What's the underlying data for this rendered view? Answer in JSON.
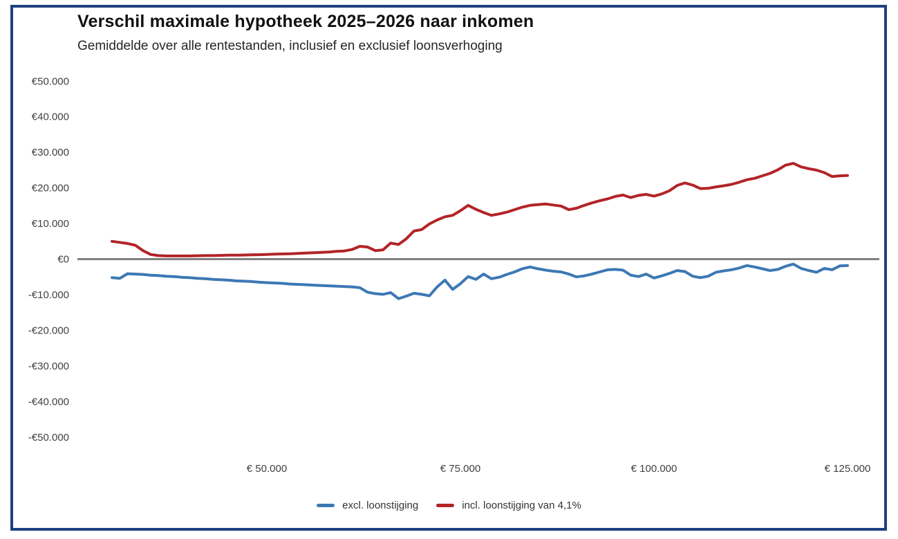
{
  "header": {
    "title": "Verschil maximale hypotheek 2025–2026 naar inkomen",
    "subtitle": "Gemiddelde over alle rentestanden, inclusief en exclusief loonsverhoging"
  },
  "colors": {
    "frame": "#1f4080",
    "zero_line": "#7f7f7f",
    "axis_text": "#404040",
    "excl_line": "#3c78b4",
    "incl_line": "#b22428"
  },
  "chart_data": {
    "type": "line",
    "title": "Verschil maximale hypotheek 2025–2026 naar inkomen",
    "subtitle": "Gemiddelde over alle rentestanden, inclusief en exclusief loonsverhoging",
    "grid": false,
    "legend_position": "bottom",
    "ylim": [
      -50000,
      50000
    ],
    "x_start": 30000,
    "x_step": 1000,
    "x_end": 125000,
    "y_ticks": [
      {
        "label": "€50.000",
        "value": 50000
      },
      {
        "label": "€40.000",
        "value": 40000
      },
      {
        "label": "€30.000",
        "value": 30000
      },
      {
        "label": "€20.000",
        "value": 20000
      },
      {
        "label": "€10.000",
        "value": 10000
      },
      {
        "label": "€0",
        "value": 0
      },
      {
        "label": "-€10.000",
        "value": -10000
      },
      {
        "label": "-€20.000",
        "value": -20000
      },
      {
        "label": "-€30.000",
        "value": -30000
      },
      {
        "label": "-€40.000",
        "value": -40000
      },
      {
        "label": "-€50.000",
        "value": -50000
      }
    ],
    "x_ticks": [
      {
        "label": "€ 50.000",
        "value": 50000
      },
      {
        "label": "€ 75.000",
        "value": 75000
      },
      {
        "label": "€ 100.000",
        "value": 100000
      },
      {
        "label": "€ 125.000",
        "value": 125000
      }
    ],
    "series": [
      {
        "id": "excl",
        "name": "excl. loonstijging",
        "color": "#3c78b4",
        "values": [
          -5200,
          -5400,
          -4100,
          -4200,
          -4300,
          -4500,
          -4600,
          -4800,
          -4900,
          -5100,
          -5200,
          -5400,
          -5500,
          -5700,
          -5800,
          -5900,
          -6100,
          -6200,
          -6300,
          -6500,
          -6600,
          -6700,
          -6800,
          -7000,
          -7100,
          -7200,
          -7300,
          -7400,
          -7500,
          -7600,
          -7700,
          -7800,
          -8000,
          -9300,
          -9700,
          -9900,
          -9400,
          -11100,
          -10400,
          -9600,
          -9900,
          -10300,
          -7800,
          -5900,
          -8500,
          -6900,
          -4900,
          -5700,
          -4200,
          -5500,
          -5100,
          -4300,
          -3600,
          -2700,
          -2200,
          -2700,
          -3100,
          -3400,
          -3600,
          -4200,
          -5000,
          -4700,
          -4200,
          -3600,
          -3000,
          -2900,
          -3100,
          -4500,
          -4900,
          -4200,
          -5300,
          -4700,
          -4000,
          -3200,
          -3500,
          -4800,
          -5200,
          -4800,
          -3700,
          -3300,
          -3000,
          -2500,
          -1800,
          -2200,
          -2700,
          -3200,
          -2900,
          -2000,
          -1400,
          -2600,
          -3200,
          -3700,
          -2600,
          -3000,
          -1900,
          -1800
        ]
      },
      {
        "id": "incl",
        "name": "incl. loonstijging van 4,1%",
        "color": "#b22428",
        "values": [
          5000,
          4700,
          4400,
          3900,
          2400,
          1300,
          1000,
          900,
          900,
          900,
          900,
          950,
          1000,
          1000,
          1050,
          1100,
          1100,
          1150,
          1200,
          1250,
          1300,
          1400,
          1450,
          1500,
          1600,
          1700,
          1800,
          1900,
          2000,
          2200,
          2300,
          2700,
          3600,
          3400,
          2400,
          2600,
          4500,
          4100,
          5700,
          7900,
          8300,
          9900,
          11000,
          11900,
          12300,
          13600,
          15100,
          14000,
          13100,
          12300,
          12700,
          13200,
          13900,
          14600,
          15100,
          15300,
          15500,
          15200,
          14900,
          13900,
          14300,
          15100,
          15800,
          16400,
          16900,
          17600,
          18000,
          17300,
          17900,
          18200,
          17700,
          18300,
          19200,
          20700,
          21400,
          20800,
          19800,
          19900,
          20300,
          20600,
          21000,
          21600,
          22300,
          22700,
          23400,
          24100,
          25100,
          26400,
          26900,
          25900,
          25400,
          25000,
          24300,
          23200,
          23400,
          23500
        ]
      }
    ],
    "legend": [
      {
        "series": "excl",
        "label": "excl. loonstijging",
        "color": "#3c78b4"
      },
      {
        "series": "incl",
        "label": "incl. loonstijging van 4,1%",
        "color": "#b22428"
      }
    ]
  }
}
